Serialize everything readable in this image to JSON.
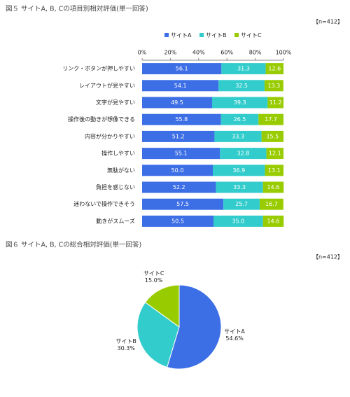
{
  "chart_data": [
    {
      "type": "stacked-bar-horizontal",
      "title": "図５ サイトA, B, Cの項目別相対評価(単一回答)",
      "annotation": "【n=412】",
      "categories": [
        "リンク・ボタンが押しやすい",
        "レイアウトが見やすい",
        "文字が見やすい",
        "操作後の動きが想像できる",
        "内容が分かりやすい",
        "操作しやすい",
        "無駄がない",
        "負担を感じない",
        "迷わないで操作できそう",
        "動きがスムーズ"
      ],
      "series": [
        {
          "name": "サイトA",
          "color": "#3c6ee6",
          "values": [
            56.1,
            54.1,
            49.5,
            55.8,
            51.2,
            55.1,
            50.0,
            52.2,
            57.5,
            50.5
          ],
          "value_labels": [
            "56.1",
            "54.1",
            "49.5",
            "55.8",
            "51.2",
            "55.1",
            "50.0",
            "52.2",
            "57.5",
            "50.5"
          ]
        },
        {
          "name": "サイトB",
          "color": "#33cccc",
          "values": [
            31.3,
            32.5,
            39.3,
            26.5,
            33.3,
            32.8,
            36.9,
            33.3,
            25.7,
            35.0
          ],
          "value_labels": [
            "31.3",
            "32.5",
            "39.3",
            "26.5",
            "33.3",
            "32.8",
            "36.9",
            "33.3",
            "25.7",
            "35.0"
          ]
        },
        {
          "name": "サイトC",
          "color": "#99cc00",
          "values": [
            12.6,
            13.3,
            11.2,
            17.7,
            15.5,
            12.1,
            13.1,
            14.6,
            16.7,
            14.6
          ],
          "value_labels": [
            "12.6",
            "13.3",
            "11.2",
            "17.7",
            "15.5",
            "12.1",
            "13.1",
            "14.6",
            "16.7",
            "14.6"
          ]
        }
      ],
      "xlim": [
        0,
        100
      ],
      "xticks": [
        {
          "value": 0,
          "label": "0%"
        },
        {
          "value": 20,
          "label": "20%"
        },
        {
          "value": 40,
          "label": "40%"
        },
        {
          "value": 60,
          "label": "60%"
        },
        {
          "value": 80,
          "label": "80%"
        },
        {
          "value": 100,
          "label": "100%"
        }
      ],
      "legend": "top",
      "grid": false
    },
    {
      "type": "pie",
      "title": "図６ サイトA, B, Cの総合相対評価(単一回答)",
      "annotation": "【n=412】",
      "categories": [
        "サイトA",
        "サイトB",
        "サイトC"
      ],
      "values": [
        54.6,
        30.3,
        15.0
      ],
      "value_labels": [
        "54.6%",
        "30.3%",
        "15.0%"
      ],
      "colors": [
        "#3c6ee6",
        "#33cccc",
        "#99cc00"
      ]
    }
  ]
}
